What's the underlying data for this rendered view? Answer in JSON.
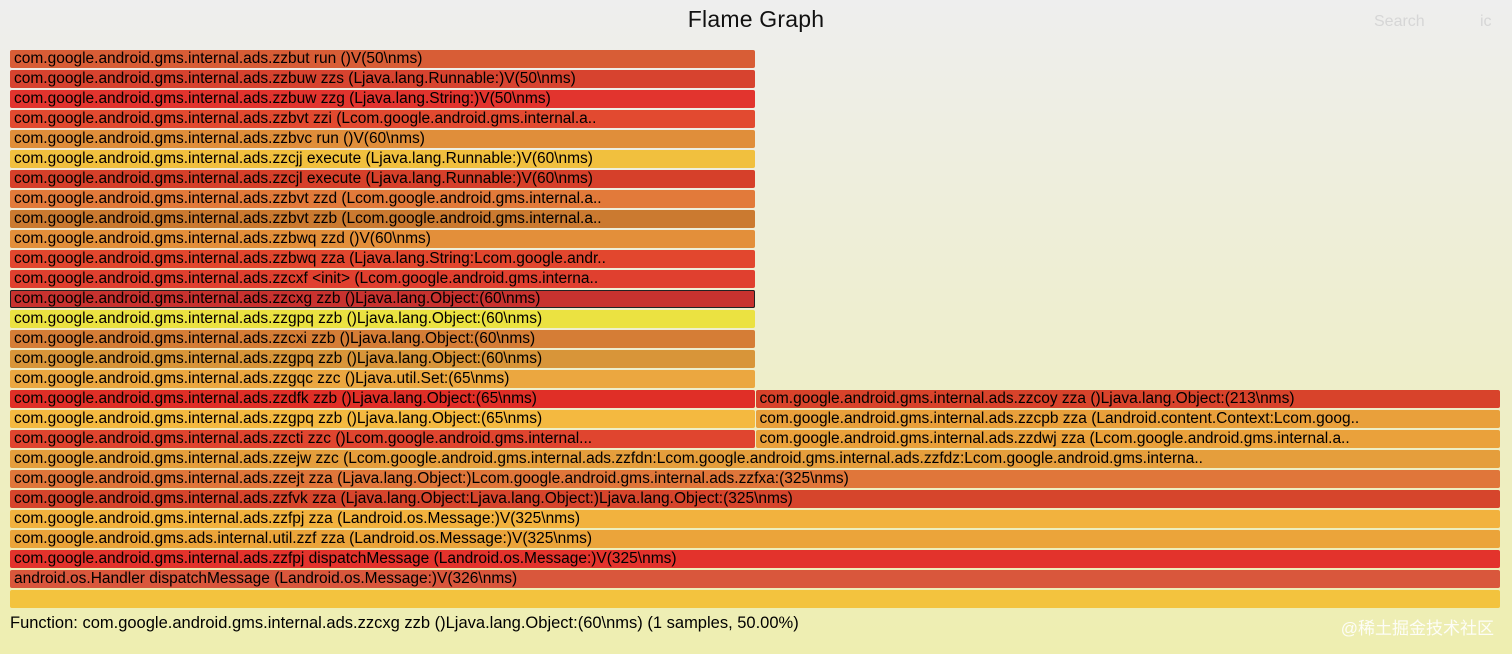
{
  "header": {
    "title": "Flame Graph",
    "search_label": "Search",
    "ic_label": "ic"
  },
  "details": "Function: com.google.android.gms.internal.ads.zzcxg zzb ()Ljava.lang.Object:(60\\nms) (1 samples, 50.00%)",
  "watermark": "@稀土掘金技术社区",
  "chart_data": {
    "type": "flame",
    "title": "Flame Graph",
    "total_samples": 2,
    "depth_order": "root at bottom (level 0), leaves at top",
    "frames": [
      {
        "level": 0,
        "start": 0,
        "samples": 2,
        "label": "",
        "color": "#f3c33e"
      },
      {
        "level": 1,
        "start": 0,
        "samples": 2,
        "label": "android.os.Handler dispatchMessage (Landroid.os.Message:)V(326\\nms)",
        "color": "#d9573c"
      },
      {
        "level": 2,
        "start": 0,
        "samples": 2,
        "label": "com.google.android.gms.internal.ads.zzfpj dispatchMessage (Landroid.os.Message:)V(325\\nms)",
        "color": "#e3332c"
      },
      {
        "level": 3,
        "start": 0,
        "samples": 2,
        "label": "com.google.android.gms.ads.internal.util.zzf zza (Landroid.os.Message:)V(325\\nms)",
        "color": "#eba43a"
      },
      {
        "level": 4,
        "start": 0,
        "samples": 2,
        "label": "com.google.android.gms.internal.ads.zzfpj zza (Landroid.os.Message:)V(325\\nms)",
        "color": "#f2b23e"
      },
      {
        "level": 5,
        "start": 0,
        "samples": 2,
        "label": "com.google.android.gms.internal.ads.zzfvk zza (Ljava.lang.Object:Ljava.lang.Object:)Ljava.lang.Object:(325\\nms)",
        "color": "#d6452c"
      },
      {
        "level": 6,
        "start": 0,
        "samples": 2,
        "label": "com.google.android.gms.internal.ads.zzejt zza (Ljava.lang.Object:)Lcom.google.android.gms.internal.ads.zzfxa:(325\\nms)",
        "color": "#e0763a"
      },
      {
        "level": 7,
        "start": 0,
        "samples": 2,
        "label": "com.google.android.gms.internal.ads.zzejw zzc (Lcom.google.android.gms.internal.ads.zzfdn:Lcom.google.android.gms.internal.ads.zzfdz:Lcom.google.android.gms.interna..",
        "color": "#e59e3c"
      },
      {
        "level": 8,
        "start": 0,
        "samples": 1,
        "label": "com.google.android.gms.internal.ads.zzcti zzc ()Lcom.google.android.gms.internal...",
        "color": "#e0452f"
      },
      {
        "level": 8,
        "start": 1,
        "samples": 1,
        "label": "com.google.android.gms.internal.ads.zzdwj zza (Lcom.google.android.gms.internal.a..",
        "color": "#eaa13b"
      },
      {
        "level": 9,
        "start": 0,
        "samples": 1,
        "label": "com.google.android.gms.internal.ads.zzgpq zzb ()Ljava.lang.Object:(65\\nms)",
        "color": "#f4b940"
      },
      {
        "level": 9,
        "start": 1,
        "samples": 1,
        "label": "com.google.android.gms.internal.ads.zzcpb zza (Landroid.content.Context:Lcom.goog..",
        "color": "#e9a03b"
      },
      {
        "level": 10,
        "start": 0,
        "samples": 1,
        "label": "com.google.android.gms.internal.ads.zzdfk zzb ()Ljava.lang.Object:(65\\nms)",
        "color": "#e02f27"
      },
      {
        "level": 10,
        "start": 1,
        "samples": 1,
        "label": "com.google.android.gms.internal.ads.zzcoy zza ()Ljava.lang.Object:(213\\nms)",
        "color": "#d8432b"
      },
      {
        "level": 11,
        "start": 0,
        "samples": 1,
        "label": "com.google.android.gms.internal.ads.zzgqc zzc ()Ljava.util.Set:(65\\nms)",
        "color": "#eba740"
      },
      {
        "level": 12,
        "start": 0,
        "samples": 1,
        "label": "com.google.android.gms.internal.ads.zzgpq zzb ()Ljava.lang.Object:(60\\nms)",
        "color": "#d89539"
      },
      {
        "level": 13,
        "start": 0,
        "samples": 1,
        "label": "com.google.android.gms.internal.ads.zzcxi zzb ()Ljava.lang.Object:(60\\nms)",
        "color": "#d57d36"
      },
      {
        "level": 14,
        "start": 0,
        "samples": 1,
        "label": "com.google.android.gms.internal.ads.zzgpq zzb ()Ljava.lang.Object:(60\\nms)",
        "color": "#ebe241"
      },
      {
        "level": 15,
        "start": 0,
        "samples": 1,
        "label": "com.google.android.gms.internal.ads.zzcxg zzb ()Ljava.lang.Object:(60\\nms)",
        "color": "#c8322f",
        "highlight": true
      },
      {
        "level": 16,
        "start": 0,
        "samples": 1,
        "label": "com.google.android.gms.internal.ads.zzcxf <init> (Lcom.google.android.gms.interna..",
        "color": "#e0402f"
      },
      {
        "level": 17,
        "start": 0,
        "samples": 1,
        "label": "com.google.android.gms.internal.ads.zzbwq zza (Ljava.lang.String:Lcom.google.andr..",
        "color": "#e2472e"
      },
      {
        "level": 18,
        "start": 0,
        "samples": 1,
        "label": "com.google.android.gms.internal.ads.zzbwq zzd ()V(60\\nms)",
        "color": "#e38f3a"
      },
      {
        "level": 19,
        "start": 0,
        "samples": 1,
        "label": "com.google.android.gms.internal.ads.zzbvt zzb (Lcom.google.android.gms.internal.a..",
        "color": "#cb7a30"
      },
      {
        "level": 20,
        "start": 0,
        "samples": 1,
        "label": "com.google.android.gms.internal.ads.zzbvt zzd (Lcom.google.android.gms.internal.a..",
        "color": "#e27a3a"
      },
      {
        "level": 21,
        "start": 0,
        "samples": 1,
        "label": "com.google.android.gms.internal.ads.zzcjl execute (Ljava.lang.Runnable:)V(60\\nms)",
        "color": "#d6402a"
      },
      {
        "level": 22,
        "start": 0,
        "samples": 1,
        "label": "com.google.android.gms.internal.ads.zzcjj execute (Ljava.lang.Runnable:)V(60\\nms)",
        "color": "#f1c03e"
      },
      {
        "level": 23,
        "start": 0,
        "samples": 1,
        "label": "com.google.android.gms.internal.ads.zzbvc run ()V(60\\nms)",
        "color": "#e08e3a"
      },
      {
        "level": 24,
        "start": 0,
        "samples": 1,
        "label": "com.google.android.gms.internal.ads.zzbvt zzi (Lcom.google.android.gms.internal.a..",
        "color": "#e24a30"
      },
      {
        "level": 25,
        "start": 0,
        "samples": 1,
        "label": "com.google.android.gms.internal.ads.zzbuw zzg (Ljava.lang.String:)V(50\\nms)",
        "color": "#e2342e"
      },
      {
        "level": 26,
        "start": 0,
        "samples": 1,
        "label": "com.google.android.gms.internal.ads.zzbuw zzs (Ljava.lang.Runnable:)V(50\\nms)",
        "color": "#d7432f"
      },
      {
        "level": 27,
        "start": 0,
        "samples": 1,
        "label": "com.google.android.gms.internal.ads.zzbut run ()V(50\\nms)",
        "color": "#d85d36"
      }
    ]
  }
}
